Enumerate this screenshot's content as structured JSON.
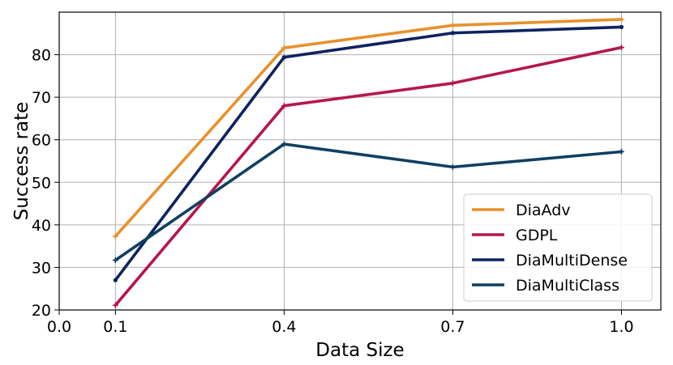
{
  "chart_data": {
    "type": "line",
    "xlabel": "Data Size",
    "ylabel": "Success rate",
    "x_ticks": [
      "0.0",
      "0.1",
      "0.4",
      "0.7",
      "1.0"
    ],
    "y_ticks": [
      "20",
      "30",
      "40",
      "50",
      "60",
      "70",
      "80"
    ],
    "xlim": [
      0.0,
      1.07
    ],
    "ylim": [
      20,
      90
    ],
    "grid": true,
    "legend_position": "lower-right",
    "x": [
      0.1,
      0.4,
      0.7,
      1.0
    ],
    "series": [
      {
        "name": "DiaAdv",
        "color": "#E8912D",
        "values": [
          37.3,
          81.6,
          86.9,
          88.3
        ]
      },
      {
        "name": "GDPL",
        "color": "#B5174A",
        "values": [
          21.1,
          68.0,
          73.3,
          81.7
        ]
      },
      {
        "name": "DiaMultiDense",
        "color": "#0D2360",
        "values": [
          27.0,
          79.4,
          85.1,
          86.5
        ]
      },
      {
        "name": "DiaMultiClass",
        "color": "#0F3F63",
        "values": [
          31.7,
          59.0,
          53.6,
          57.2
        ]
      }
    ]
  }
}
